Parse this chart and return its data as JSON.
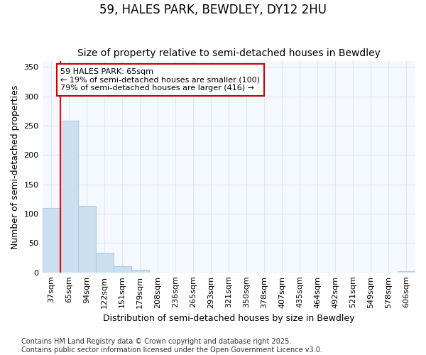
{
  "title": "59, HALES PARK, BEWDLEY, DY12 2HU",
  "subtitle": "Size of property relative to semi-detached houses in Bewdley",
  "xlabel": "Distribution of semi-detached houses by size in Bewdley",
  "ylabel": "Number of semi-detached properties",
  "categories": [
    "37sqm",
    "65sqm",
    "94sqm",
    "122sqm",
    "151sqm",
    "179sqm",
    "208sqm",
    "236sqm",
    "265sqm",
    "293sqm",
    "321sqm",
    "350sqm",
    "378sqm",
    "407sqm",
    "435sqm",
    "464sqm",
    "492sqm",
    "521sqm",
    "549sqm",
    "578sqm",
    "606sqm"
  ],
  "values": [
    110,
    258,
    113,
    33,
    10,
    5,
    0,
    0,
    0,
    0,
    0,
    0,
    0,
    0,
    0,
    0,
    0,
    0,
    0,
    0,
    2
  ],
  "bar_color": "#ccdff0",
  "bar_edge_color": "#aaccee",
  "red_line_x": 0.5,
  "ylim": [
    0,
    360
  ],
  "yticks": [
    0,
    50,
    100,
    150,
    200,
    250,
    300,
    350
  ],
  "annotation_title": "59 HALES PARK: 65sqm",
  "annotation_line1": "← 19% of semi-detached houses are smaller (100)",
  "annotation_line2": "79% of semi-detached houses are larger (416) →",
  "annotation_box_facecolor": "#ffffff",
  "annotation_box_edgecolor": "#cc0000",
  "background_color": "#ffffff",
  "plot_bg_color": "#f5f8ff",
  "grid_color": "#dde8f5",
  "footer_line1": "Contains HM Land Registry data © Crown copyright and database right 2025.",
  "footer_line2": "Contains public sector information licensed under the Open Government Licence v3.0.",
  "title_fontsize": 12,
  "subtitle_fontsize": 10,
  "xlabel_fontsize": 9,
  "ylabel_fontsize": 9,
  "tick_fontsize": 8,
  "annotation_fontsize": 8,
  "footer_fontsize": 7
}
